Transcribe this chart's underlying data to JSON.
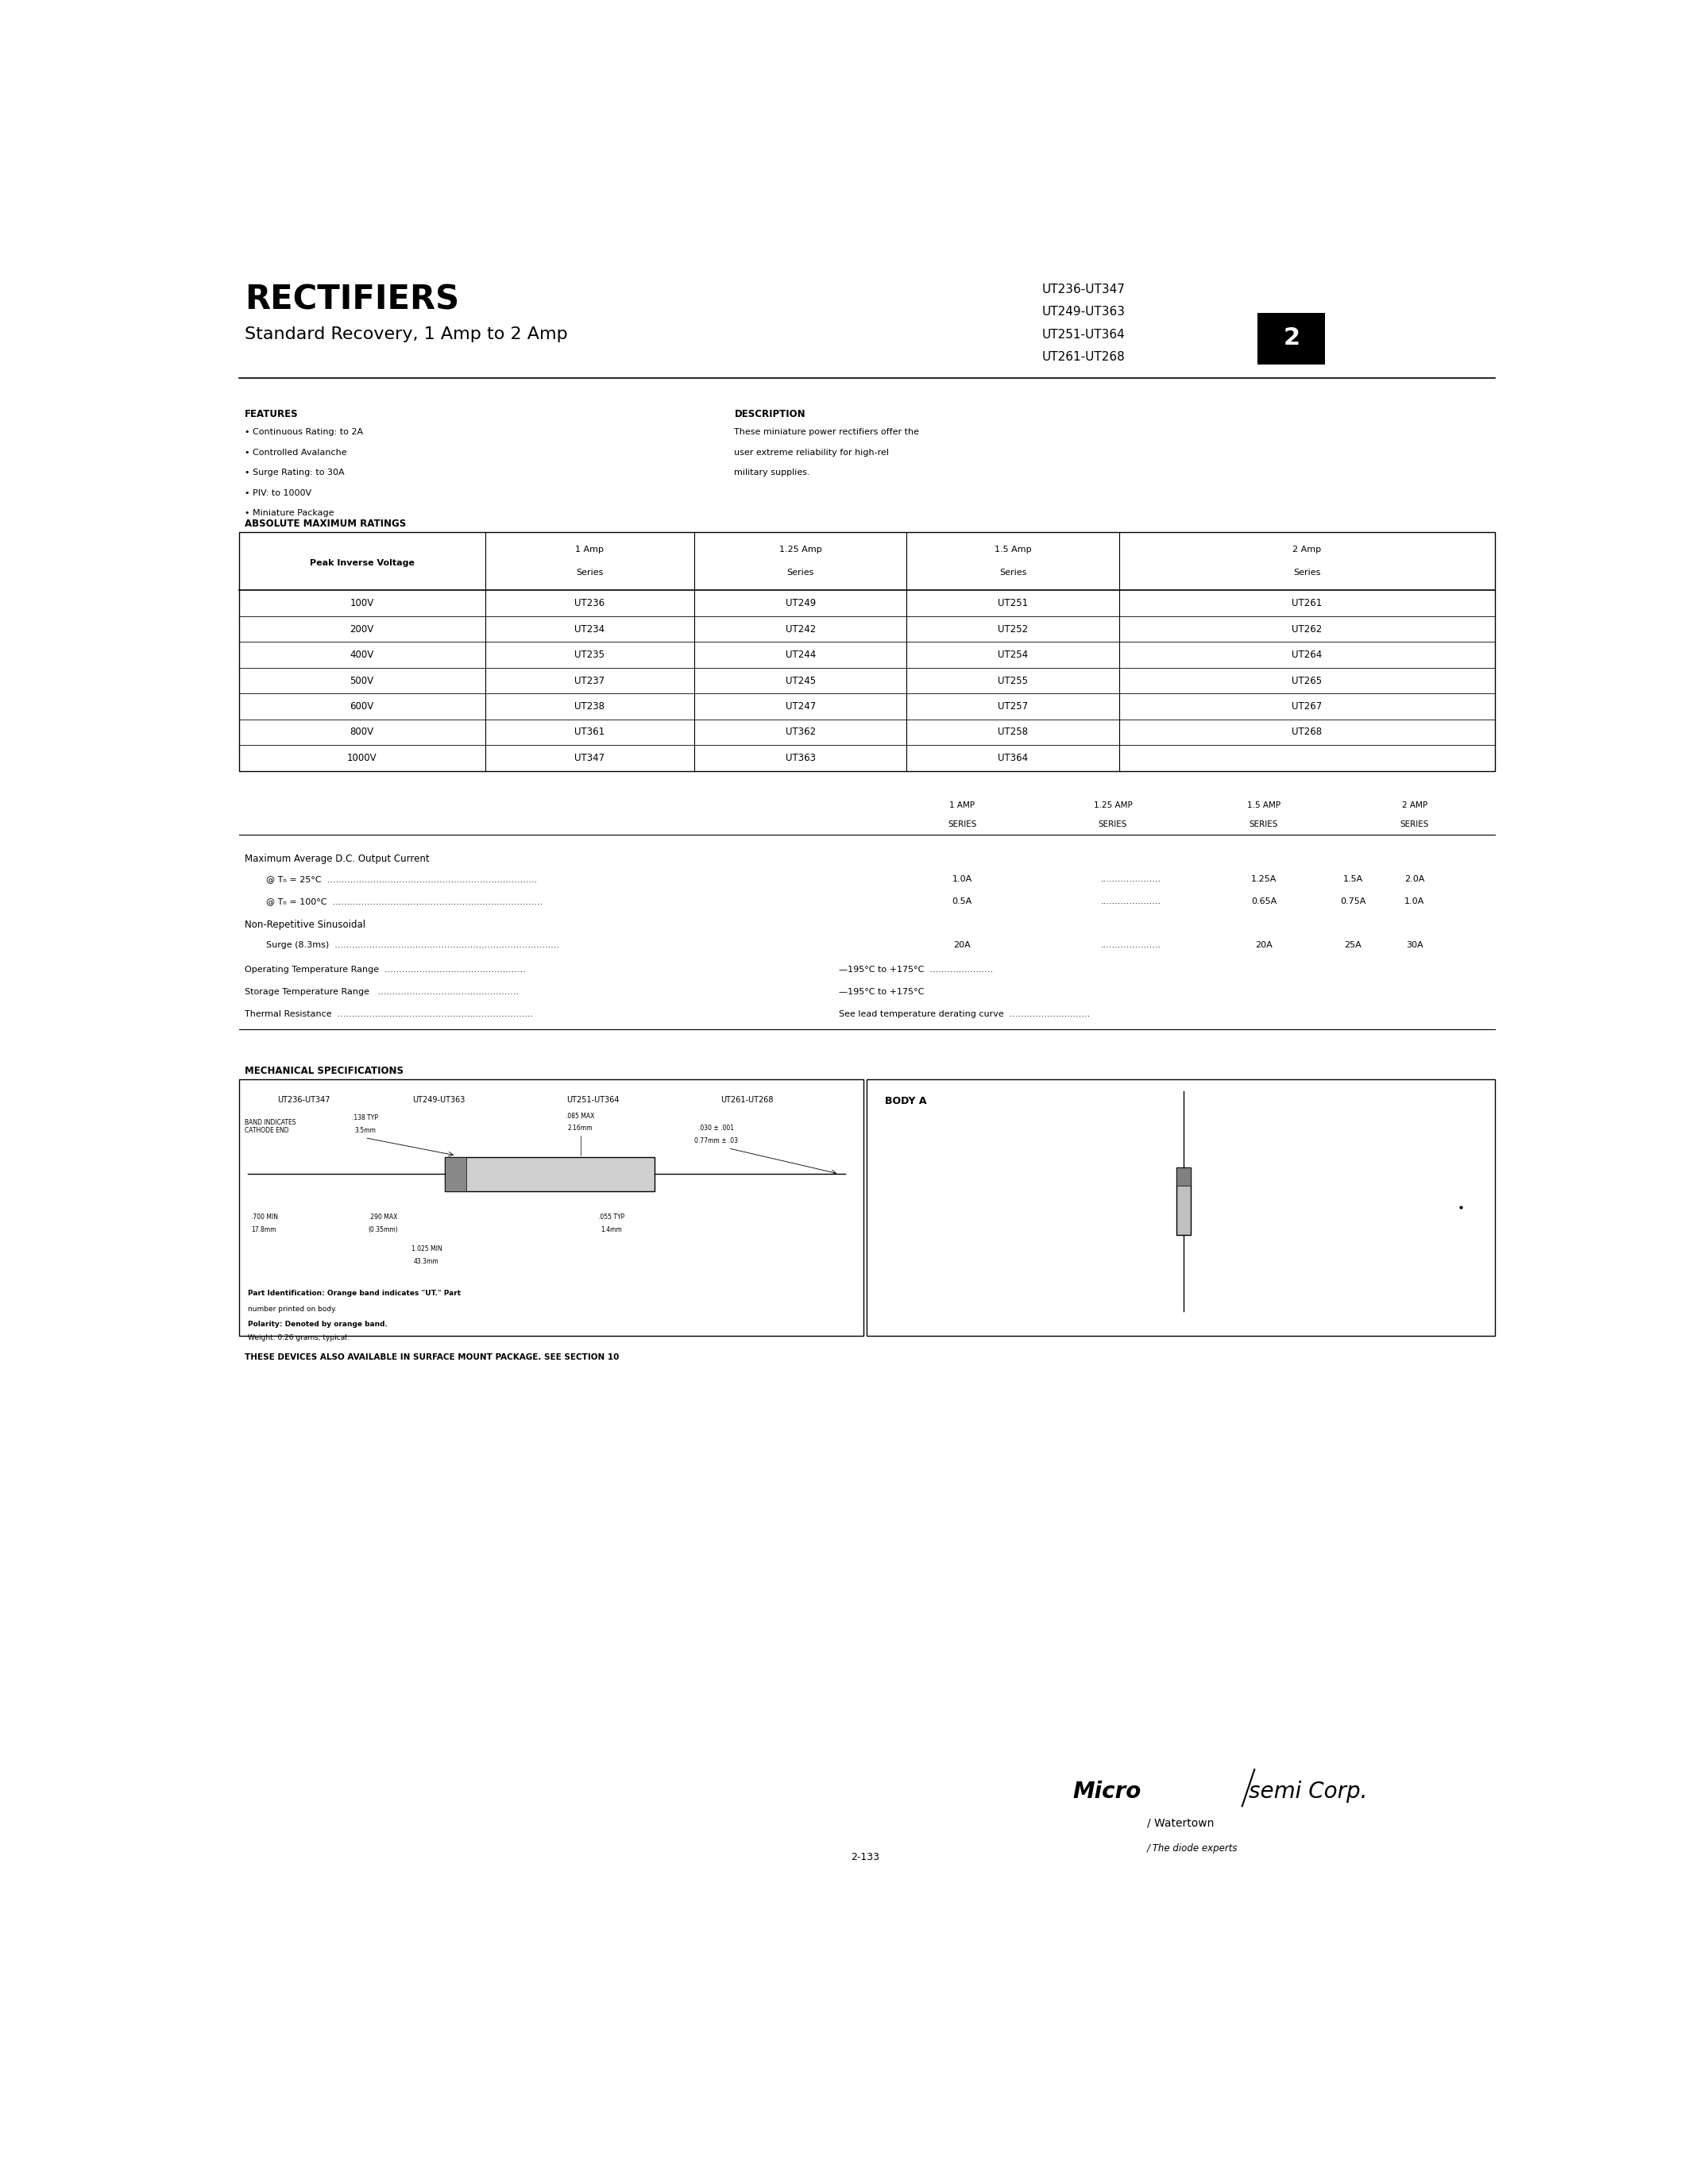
{
  "title": "RECTIFIERS",
  "subtitle": "Standard Recovery, 1 Amp to 2 Amp",
  "part_numbers_top": [
    "UT236-UT347",
    "UT249-UT363",
    "UT251-UT364",
    "UT261-UT268"
  ],
  "section_number": "2",
  "features_title": "FEATURES",
  "features": [
    "Continuous Rating: to 2A",
    "Controlled Avalanche",
    "Surge Rating: to 30A",
    "PIV: to 1000V",
    "Miniature Package"
  ],
  "description_title": "DESCRIPTION",
  "description_lines": [
    "These miniature power rectifiers offer the",
    "user extreme reliability for high-rel",
    "military supplies."
  ],
  "abs_max_title": "ABSOLUTE MAXIMUM RATINGS",
  "table_col1_header": "Peak Inverse Voltage",
  "table_col_headers": [
    "1 Amp",
    "1.25 Amp",
    "1.5 Amp",
    "2 Amp"
  ],
  "table_col_headers2": [
    "Series",
    "Series",
    "Series",
    "Series"
  ],
  "table_rows": [
    [
      "100V",
      "UT236",
      "UT249",
      "UT251",
      "UT261"
    ],
    [
      "200V",
      "UT234",
      "UT242",
      "UT252",
      "UT262"
    ],
    [
      "400V",
      "UT235",
      "UT244",
      "UT254",
      "UT264"
    ],
    [
      "500V",
      "UT237",
      "UT245",
      "UT255",
      "UT265"
    ],
    [
      "600V",
      "UT238",
      "UT247",
      "UT257",
      "UT267"
    ],
    [
      "800V",
      "UT361",
      "UT362",
      "UT258",
      "UT268"
    ],
    [
      "1000V",
      "UT347",
      "UT363",
      "UT364",
      ""
    ]
  ],
  "ratings_col_headers1": [
    "1 AMP",
    "1.25 AMP",
    "1.5 AMP",
    "2 AMP"
  ],
  "ratings_col_headers2": [
    "SERIES",
    "SERIES",
    "SERIES",
    "SERIES"
  ],
  "mech_title": "MECHANICAL SPECIFICATIONS",
  "mech_pn_labels": [
    "UT236-UT347",
    "UT249-UT363",
    "UT251-UT364",
    "UT261-UT268"
  ],
  "body_a_label": "BODY A",
  "footer_text": "THESE DEVICES ALSO AVAILABLE IN SURFACE MOUNT PACKAGE. SEE SECTION 10",
  "page_number": "2-133",
  "bullet": "•"
}
